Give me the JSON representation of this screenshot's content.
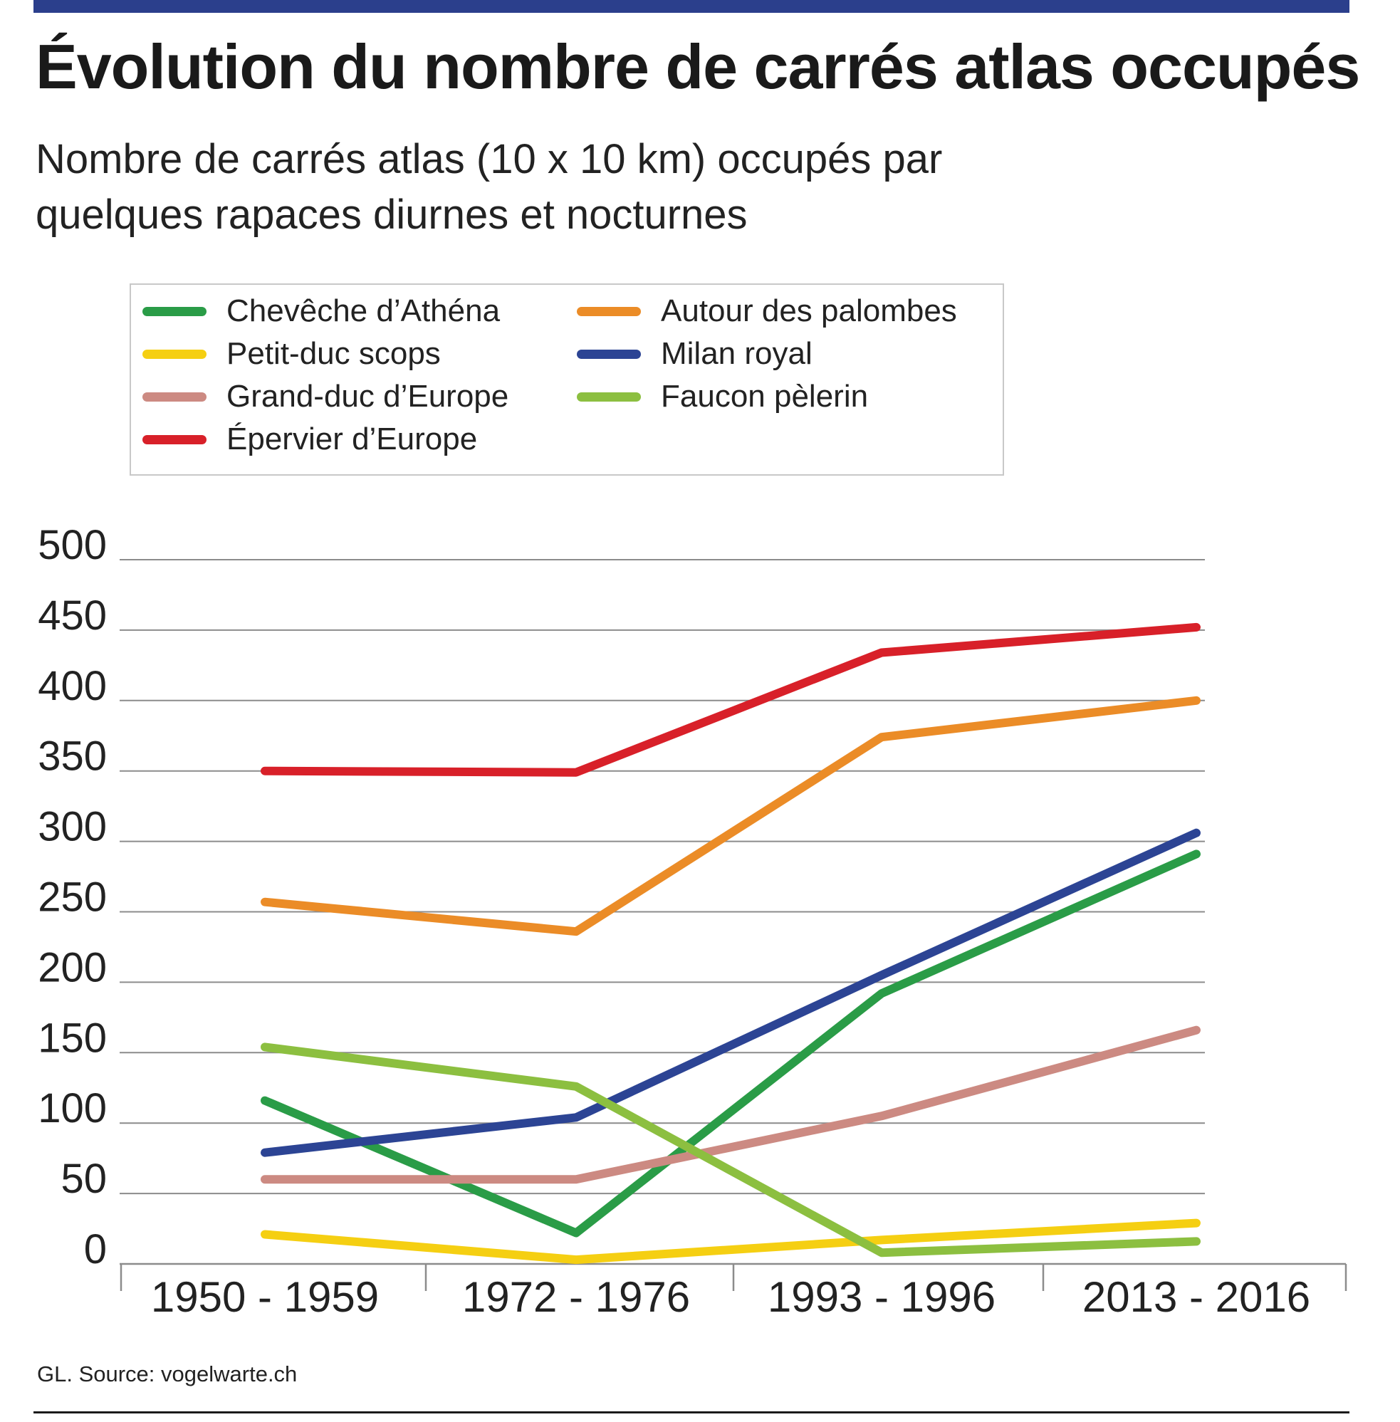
{
  "header": {
    "title": "Évolution du nombre de carrés atlas occupés",
    "subtitle_line1": "Nombre de carrés atlas (10 x 10 km) occupés par",
    "subtitle_line2": "quelques rapaces diurnes et nocturnes"
  },
  "footer": {
    "source": "GL. Source: vogelwarte.ch"
  },
  "colors": {
    "topbar": "#2b3f8c",
    "grid": "#8c8c8c",
    "axis": "#8c8c8c"
  },
  "chart_data": {
    "type": "line",
    "title": "Évolution du nombre de carrés atlas occupés",
    "xlabel": "",
    "ylabel": "",
    "categories": [
      "1950 - 1959",
      "1972 - 1976",
      "1993 - 1996",
      "2013 - 2016"
    ],
    "ylim": [
      0,
      500
    ],
    "yticks": [
      "0",
      "50",
      "100",
      "150",
      "200",
      "250",
      "300",
      "350",
      "400",
      "450",
      "500"
    ],
    "grid": true,
    "legend_position": "top-left",
    "series": [
      {
        "name": "Chevêche d’Athéna",
        "color": "#2a9c47",
        "values": [
          116,
          22,
          192,
          291
        ]
      },
      {
        "name": "Petit-duc scops",
        "color": "#f5cf12",
        "values": [
          21,
          3,
          17,
          29
        ]
      },
      {
        "name": "Grand-duc d’Europe",
        "color": "#cc8a82",
        "values": [
          60,
          60,
          105,
          166
        ]
      },
      {
        "name": "Épervier d’Europe",
        "color": "#d82029",
        "values": [
          350,
          349,
          434,
          452
        ]
      },
      {
        "name": "Autour des palombes",
        "color": "#eb8c27",
        "values": [
          257,
          236,
          374,
          400
        ]
      },
      {
        "name": "Milan royal",
        "color": "#2c4494",
        "values": [
          79,
          104,
          205,
          306
        ]
      },
      {
        "name": "Faucon pèlerin",
        "color": "#8cbf40",
        "values": [
          154,
          126,
          8,
          16
        ]
      }
    ]
  }
}
